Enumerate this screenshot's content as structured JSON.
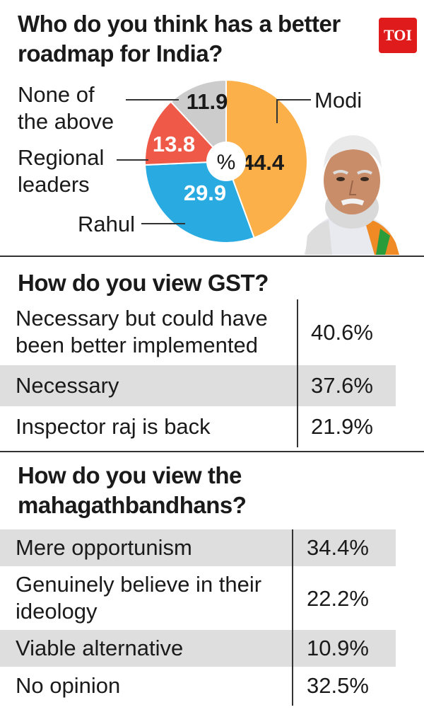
{
  "brand": "TOI",
  "chart_data": {
    "type": "pie",
    "title": "Who do you think has a better roadmap for India?",
    "center_label": "%",
    "slices": [
      {
        "label": "Modi",
        "value": 44.4,
        "display": "44.4",
        "color": "#fbb04a"
      },
      {
        "label": "Rahul",
        "value": 29.9,
        "display": "29.9",
        "color": "#29abe2"
      },
      {
        "label": "Regional leaders",
        "value": 13.8,
        "display": "13.8",
        "color": "#ee5a47"
      },
      {
        "label": "None of the above",
        "value": 11.9,
        "display": "11.9",
        "color": "#cccccc"
      }
    ]
  },
  "labels": {
    "none_line1": "None of",
    "none_line2": "the above",
    "regional_line1": "Regional",
    "regional_line2": "leaders",
    "rahul": "Rahul",
    "modi": "Modi"
  },
  "gst": {
    "title": "How do you view GST?",
    "rows": [
      {
        "line1": "Necessary but could have",
        "line2": "been better implemented",
        "value": "40.6%"
      },
      {
        "label": "Necessary",
        "value": "37.6%"
      },
      {
        "label": "Inspector raj is back",
        "value": "21.9%"
      }
    ]
  },
  "mgb": {
    "title_line1": "How do you view the",
    "title_line2": "mahagathbandhans?",
    "rows": [
      {
        "label": "Mere opportunism",
        "value": "34.4%"
      },
      {
        "line1": "Genuinely believe in their",
        "line2": "ideology",
        "value": "22.2%"
      },
      {
        "label": "Viable alternative",
        "value": "10.9%"
      },
      {
        "label": "No opinion",
        "value": "32.5%"
      }
    ]
  },
  "photo_alt": "portrait-photo"
}
